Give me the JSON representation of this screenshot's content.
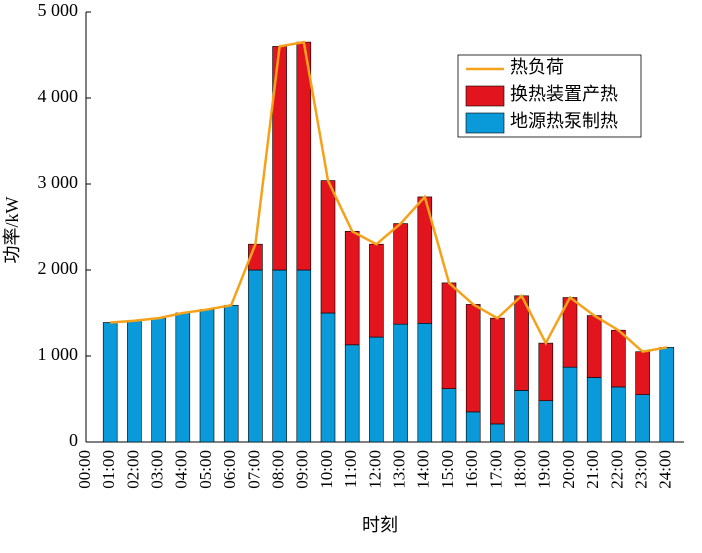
{
  "chart_data": {
    "type": "bar",
    "xlabel": "时刻",
    "ylabel": "功率/kW",
    "categories": [
      "00:00",
      "01:00",
      "02:00",
      "03:00",
      "04:00",
      "05:00",
      "06:00",
      "07:00",
      "08:00",
      "09:00",
      "10:00",
      "11:00",
      "12:00",
      "13:00",
      "14:00",
      "15:00",
      "16:00",
      "17:00",
      "18:00",
      "19:00",
      "20:00",
      "21:00",
      "22:00",
      "23:00",
      "24:00"
    ],
    "series": [
      {
        "name": "热负荷",
        "type": "line",
        "color": "#f5a21a",
        "values": [
          null,
          1390,
          1410,
          1440,
          1500,
          1540,
          1590,
          2300,
          4600,
          4650,
          3040,
          2450,
          2300,
          2540,
          2850,
          1850,
          1600,
          1440,
          1700,
          1150,
          1680,
          1470,
          1300,
          1050,
          1100
        ]
      },
      {
        "name": "换热装置产热",
        "type": "bar",
        "color": "#e2151f",
        "values": [
          null,
          0,
          0,
          0,
          0,
          0,
          0,
          300,
          2600,
          2650,
          1540,
          1320,
          1080,
          1170,
          1470,
          1230,
          1250,
          1230,
          1100,
          670,
          810,
          720,
          660,
          500,
          0
        ]
      },
      {
        "name": "地源热泵制热",
        "type": "bar",
        "color": "#0a9ad9",
        "values": [
          null,
          1390,
          1410,
          1440,
          1500,
          1540,
          1590,
          2000,
          2000,
          2000,
          1500,
          1130,
          1220,
          1370,
          1380,
          620,
          350,
          210,
          600,
          480,
          870,
          750,
          640,
          550,
          1100
        ]
      }
    ],
    "ylim": [
      0,
      5000
    ],
    "yticks": [
      0,
      {
        "value": 1000,
        "label": "1 000"
      },
      {
        "value": 2000,
        "label": "2 000"
      },
      {
        "value": 3000,
        "label": "3 000"
      },
      {
        "value": 4000,
        "label": "4 000"
      },
      {
        "value": 5000,
        "label": "5 000"
      }
    ],
    "stacked": true,
    "legend": "upper right"
  }
}
